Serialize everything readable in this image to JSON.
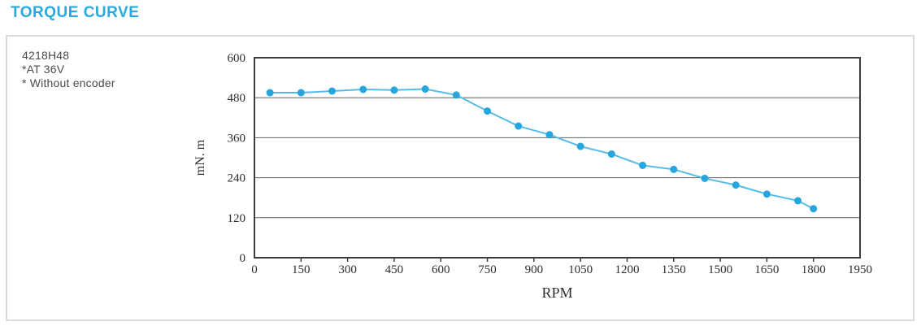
{
  "title": "TORQUE CURVE",
  "panel": {
    "info_lines": [
      "4218H48",
      "*AT 36V",
      "* Without encoder"
    ]
  },
  "colors": {
    "title": "#29A9E0",
    "curve_line": "#55BCE8",
    "curve_marker": "#27A5DE",
    "panel_border": "#DBDBDB",
    "plot_border": "#3D3D3D",
    "gridline": "#5F5F5F",
    "axis_text": "#2E2E2E",
    "info_text": "#4A4A4A"
  },
  "chart_data": {
    "type": "line",
    "title": "",
    "xlabel": "RPM",
    "ylabel": "mN. m",
    "xlim": [
      0,
      1950
    ],
    "ylim": [
      0,
      600
    ],
    "x_ticks": [
      0,
      150,
      300,
      450,
      600,
      750,
      900,
      1050,
      1200,
      1350,
      1500,
      1650,
      1800,
      1950
    ],
    "y_ticks": [
      0,
      120,
      240,
      360,
      480,
      600
    ],
    "grid": "horizontal",
    "legend": "none",
    "series": [
      {
        "name": "torque",
        "x": [
          50,
          150,
          250,
          350,
          450,
          550,
          650,
          750,
          850,
          950,
          1050,
          1150,
          1250,
          1350,
          1450,
          1550,
          1650,
          1750,
          1800
        ],
        "y": [
          495,
          495,
          500,
          505,
          503,
          506,
          488,
          440,
          395,
          369,
          334,
          311,
          277,
          265,
          238,
          218,
          191,
          171,
          147
        ]
      }
    ]
  }
}
